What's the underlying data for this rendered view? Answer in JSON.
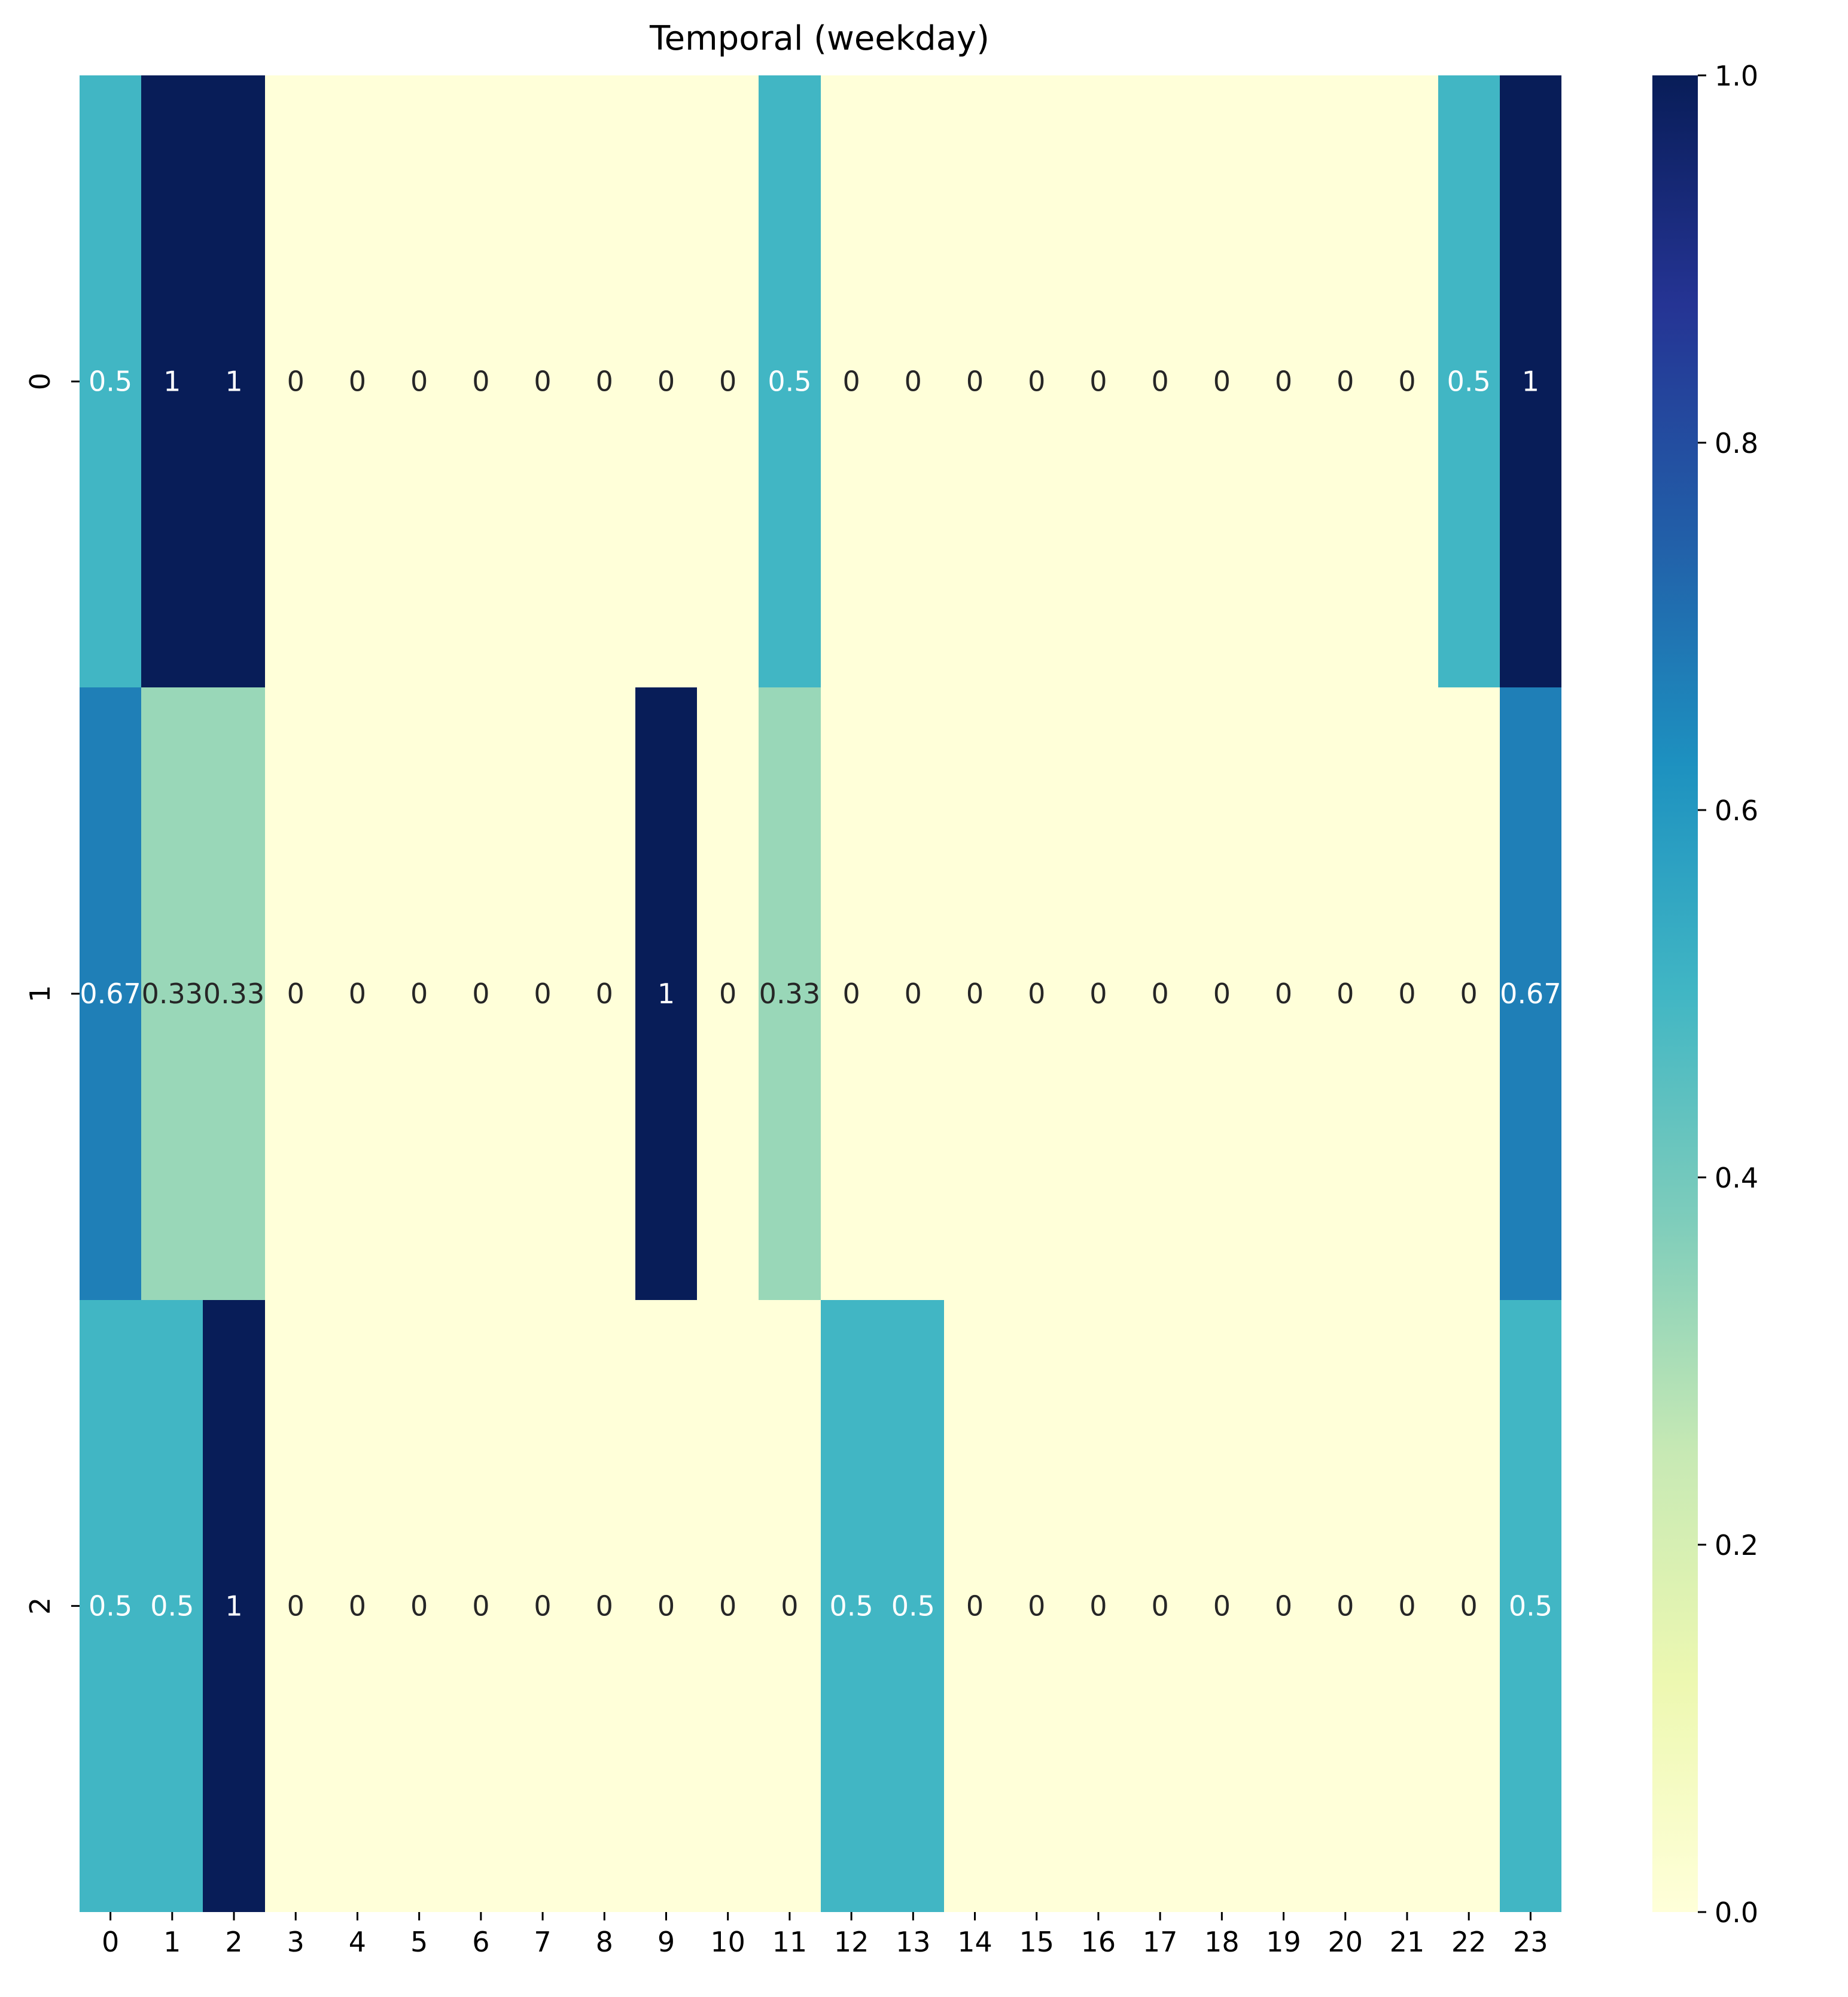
{
  "chart_data": {
    "type": "heatmap",
    "title": "Temporal (weekday)",
    "xlabel": "",
    "ylabel": "",
    "x_categories": [
      "0",
      "1",
      "2",
      "3",
      "4",
      "5",
      "6",
      "7",
      "8",
      "9",
      "10",
      "11",
      "12",
      "13",
      "14",
      "15",
      "16",
      "17",
      "18",
      "19",
      "20",
      "21",
      "22",
      "23"
    ],
    "y_categories": [
      "0",
      "1",
      "2"
    ],
    "values": [
      [
        0.5,
        1,
        1,
        0,
        0,
        0,
        0,
        0,
        0,
        0,
        0,
        0.5,
        0,
        0,
        0,
        0,
        0,
        0,
        0,
        0,
        0,
        0,
        0.5,
        1
      ],
      [
        0.67,
        0.33,
        0.33,
        0,
        0,
        0,
        0,
        0,
        0,
        1,
        0,
        0.33,
        0,
        0,
        0,
        0,
        0,
        0,
        0,
        0,
        0,
        0,
        0,
        0.67
      ],
      [
        0.5,
        0.5,
        1,
        0,
        0,
        0,
        0,
        0,
        0,
        0,
        0,
        0,
        0.5,
        0.5,
        0,
        0,
        0,
        0,
        0,
        0,
        0,
        0,
        0,
        0.5
      ]
    ],
    "labels": [
      [
        "0.5",
        "1",
        "1",
        "0",
        "0",
        "0",
        "0",
        "0",
        "0",
        "0",
        "0",
        "0.5",
        "0",
        "0",
        "0",
        "0",
        "0",
        "0",
        "0",
        "0",
        "0",
        "0",
        "0.5",
        "1"
      ],
      [
        "0.67",
        "0.33",
        "0.33",
        "0",
        "0",
        "0",
        "0",
        "0",
        "0",
        "1",
        "0",
        "0.33",
        "0",
        "0",
        "0",
        "0",
        "0",
        "0",
        "0",
        "0",
        "0",
        "0",
        "0",
        "0.67"
      ],
      [
        "0.5",
        "0.5",
        "1",
        "0",
        "0",
        "0",
        "0",
        "0",
        "0",
        "0",
        "0",
        "0",
        "0.5",
        "0.5",
        "0",
        "0",
        "0",
        "0",
        "0",
        "0",
        "0",
        "0",
        "0",
        "0.5"
      ]
    ],
    "vmin": 0,
    "vmax": 1,
    "colormap": "YlGnBu",
    "colorbar_ticks": [
      "0.0",
      "0.2",
      "0.4",
      "0.6",
      "0.8",
      "1.0"
    ],
    "colorbar_tick_values": [
      0,
      0.2,
      0.4,
      0.6,
      0.8,
      1.0
    ],
    "colormap_stops": [
      "#ffffd9",
      "#edf8b1",
      "#c7e9b4",
      "#7fcdbb",
      "#41b6c4",
      "#1d91c0",
      "#225ea8",
      "#253494",
      "#081d58"
    ]
  }
}
